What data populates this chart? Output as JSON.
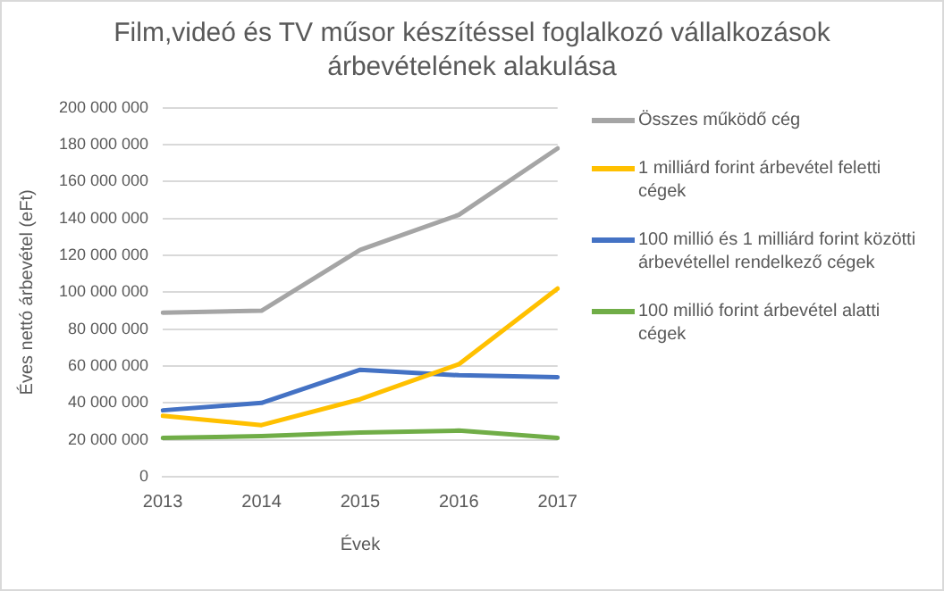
{
  "chart_data": {
    "type": "line",
    "title": "Film,videó és TV műsor készítéssel foglalkozó vállalkozások árbevételének alakulása",
    "xlabel": "Évek",
    "ylabel": "Éves nettó árbevétel (eFt)",
    "categories": [
      "2013",
      "2014",
      "2015",
      "2016",
      "2017"
    ],
    "series": [
      {
        "name": "Összes működő cég",
        "color": "#a5a5a5",
        "values": [
          89000000,
          90000000,
          123000000,
          142000000,
          178000000
        ]
      },
      {
        "name": "1 milliárd forint árbevétel feletti cégek",
        "color": "#ffc000",
        "values": [
          33000000,
          28000000,
          42000000,
          61000000,
          102000000
        ]
      },
      {
        "name": "100 millió és 1 milliárd forint közötti árbevétellel rendelkező cégek",
        "color": "#4472c4",
        "values": [
          36000000,
          40000000,
          58000000,
          55000000,
          54000000
        ]
      },
      {
        "name": "100 millió forint árbevétel alatti cégek",
        "color": "#70ad47",
        "values": [
          21000000,
          22000000,
          24000000,
          25000000,
          21000000
        ]
      }
    ],
    "ylim": [
      0,
      200000000
    ],
    "yticks": [
      {
        "value": 0,
        "label": "0"
      },
      {
        "value": 20000000,
        "label": "20 000 000"
      },
      {
        "value": 40000000,
        "label": "40 000 000"
      },
      {
        "value": 60000000,
        "label": "60 000 000"
      },
      {
        "value": 80000000,
        "label": "80 000 000"
      },
      {
        "value": 100000000,
        "label": "100 000 000"
      },
      {
        "value": 120000000,
        "label": "120 000 000"
      },
      {
        "value": 140000000,
        "label": "140 000 000"
      },
      {
        "value": 160000000,
        "label": "160 000 000"
      },
      {
        "value": 180000000,
        "label": "180 000 000"
      },
      {
        "value": 200000000,
        "label": "200 000 000"
      }
    ],
    "grid": "y",
    "legend": "right",
    "marker": "none",
    "line_style": "solid"
  }
}
